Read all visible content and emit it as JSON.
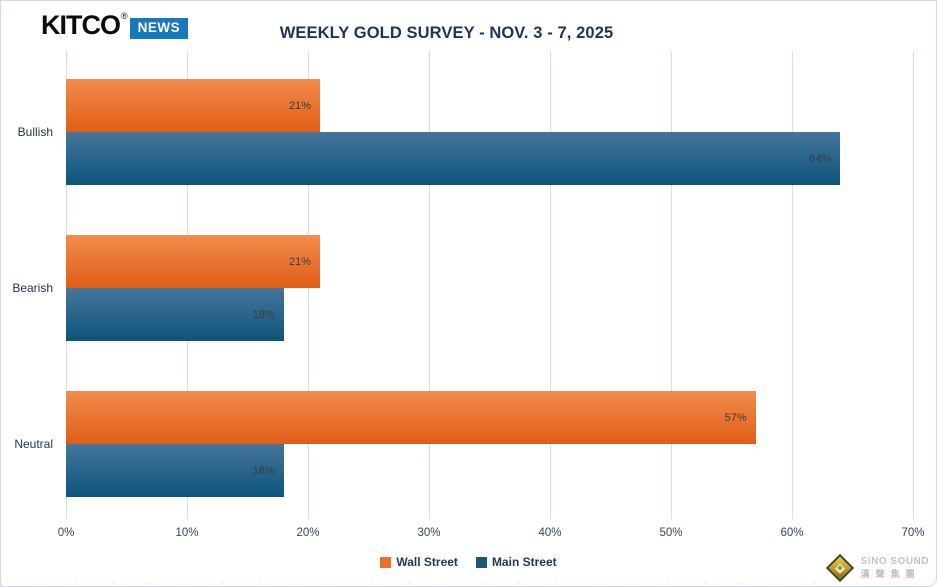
{
  "header": {
    "logo_kitco": "KITCO",
    "logo_registered": "®",
    "logo_news": "NEWS"
  },
  "chart_data": {
    "type": "bar",
    "orientation": "horizontal",
    "title": "WEEKLY GOLD SURVEY - NOV. 3 - 7, 2025",
    "categories": [
      "Bullish",
      "Bearish",
      "Neutral"
    ],
    "series": [
      {
        "name": "Wall Street",
        "values": [
          21,
          21,
          57
        ],
        "color": "#e8712e",
        "gradient_top": "#f28c4e",
        "gradient_bottom": "#e05d16"
      },
      {
        "name": "Main Street",
        "values": [
          64,
          18,
          18
        ],
        "color": "#1a567a",
        "gradient_top": "#46759b",
        "gradient_bottom": "#0d547b"
      }
    ],
    "value_suffix": "%",
    "x_ticks": [
      "0%",
      "10%",
      "20%",
      "30%",
      "40%",
      "50%",
      "60%",
      "70%"
    ],
    "xlim": [
      0,
      70
    ],
    "grid": true,
    "legend_position": "bottom-center",
    "bar_label_position": "inside-end"
  },
  "watermark": {
    "line1": "SiNO SOUND",
    "line2": "漢聲集團"
  }
}
